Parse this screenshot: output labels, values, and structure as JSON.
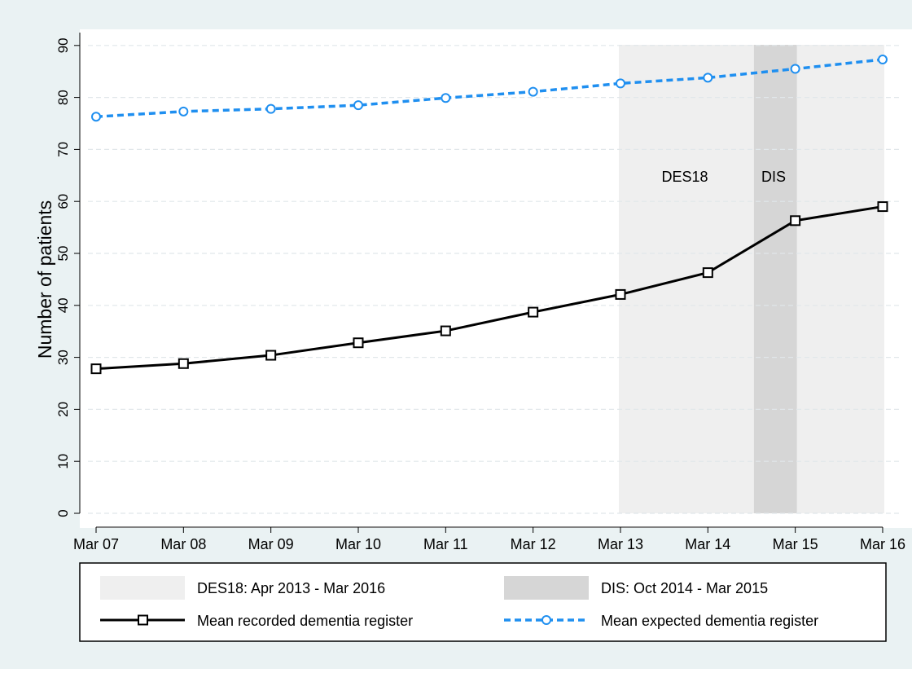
{
  "chart_data": {
    "type": "line",
    "ylabel": "Number of patients",
    "xlabel": "",
    "categories": [
      "Mar 07",
      "Mar 08",
      "Mar 09",
      "Mar 10",
      "Mar 11",
      "Mar 12",
      "Mar 13",
      "Mar 14",
      "Mar 15",
      "Mar 16"
    ],
    "yticks": [
      "0",
      "10",
      "20",
      "30",
      "40",
      "50",
      "60",
      "70",
      "80",
      "90"
    ],
    "ylim": [
      0,
      90
    ],
    "grid": true,
    "series": [
      {
        "name": "Mean recorded dementia register",
        "values": [
          27.8,
          28.8,
          30.4,
          32.8,
          35.1,
          38.7,
          42.1,
          46.3,
          56.3,
          59.0
        ],
        "color": "#000000",
        "marker": "square",
        "line": "solid"
      },
      {
        "name": "Mean expected dementia register",
        "values": [
          76.3,
          77.3,
          77.8,
          78.5,
          79.9,
          81.1,
          82.7,
          83.8,
          85.5,
          87.3
        ],
        "color": "#1f8ff0",
        "marker": "circle",
        "line": "dotted"
      }
    ],
    "shaded_periods": [
      {
        "label": "DES18",
        "legend": "DES18: Apr 2013 - Mar 2016",
        "from": "Mar 13",
        "to": "Mar 16",
        "color": "#efefef"
      },
      {
        "label": "DIS",
        "legend": "DIS: Oct 2014 - Mar 2015",
        "from": "Oct 14",
        "to": "Mar 15",
        "color": "#d6d6d6"
      }
    ],
    "legend_position": "bottom",
    "colors": {
      "outer_background": "#eaf2f3",
      "plot_background": "#ffffff",
      "grid": "#e1e7ea"
    }
  }
}
